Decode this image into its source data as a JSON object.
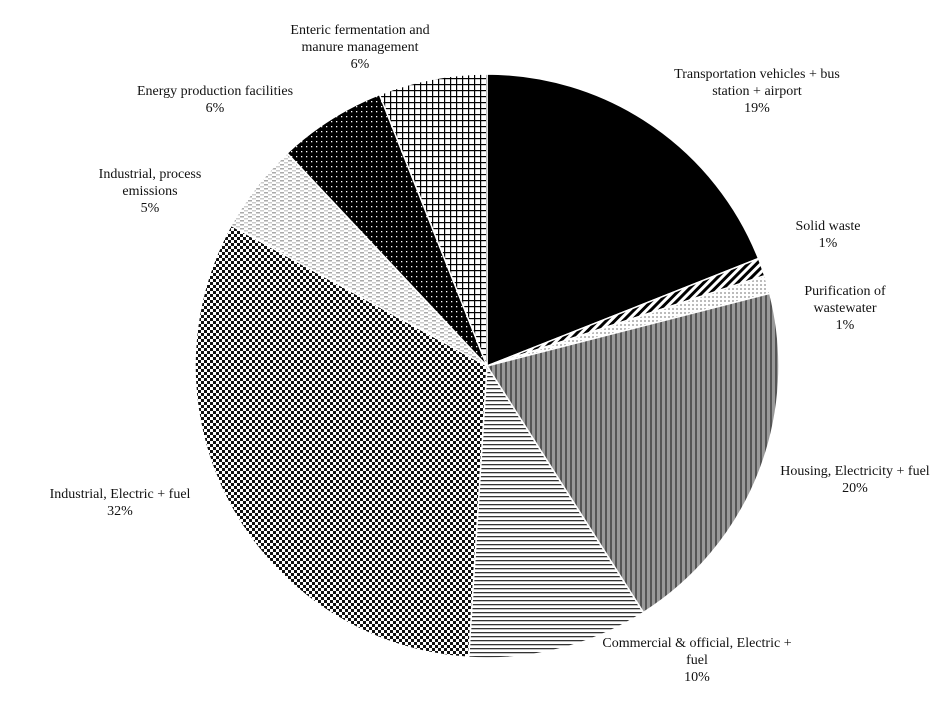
{
  "chart_data": {
    "type": "pie",
    "categories": [
      "Transportation vehicles + bus station + airport",
      "Solid waste",
      "Purification of wastewater",
      "Housing, Electricity + fuel",
      "Commercial & official, Electric + fuel",
      "Industrial, Electric + fuel",
      "Industrial, process emissions",
      "Energy production facilities",
      "Enteric fermentation and manure management"
    ],
    "values": [
      19,
      1,
      1,
      20,
      10,
      32,
      5,
      6,
      6
    ],
    "value_labels": [
      "19%",
      "1%",
      "1%",
      "20%",
      "10%",
      "32%",
      "5%",
      "6%",
      "6%"
    ]
  }
}
